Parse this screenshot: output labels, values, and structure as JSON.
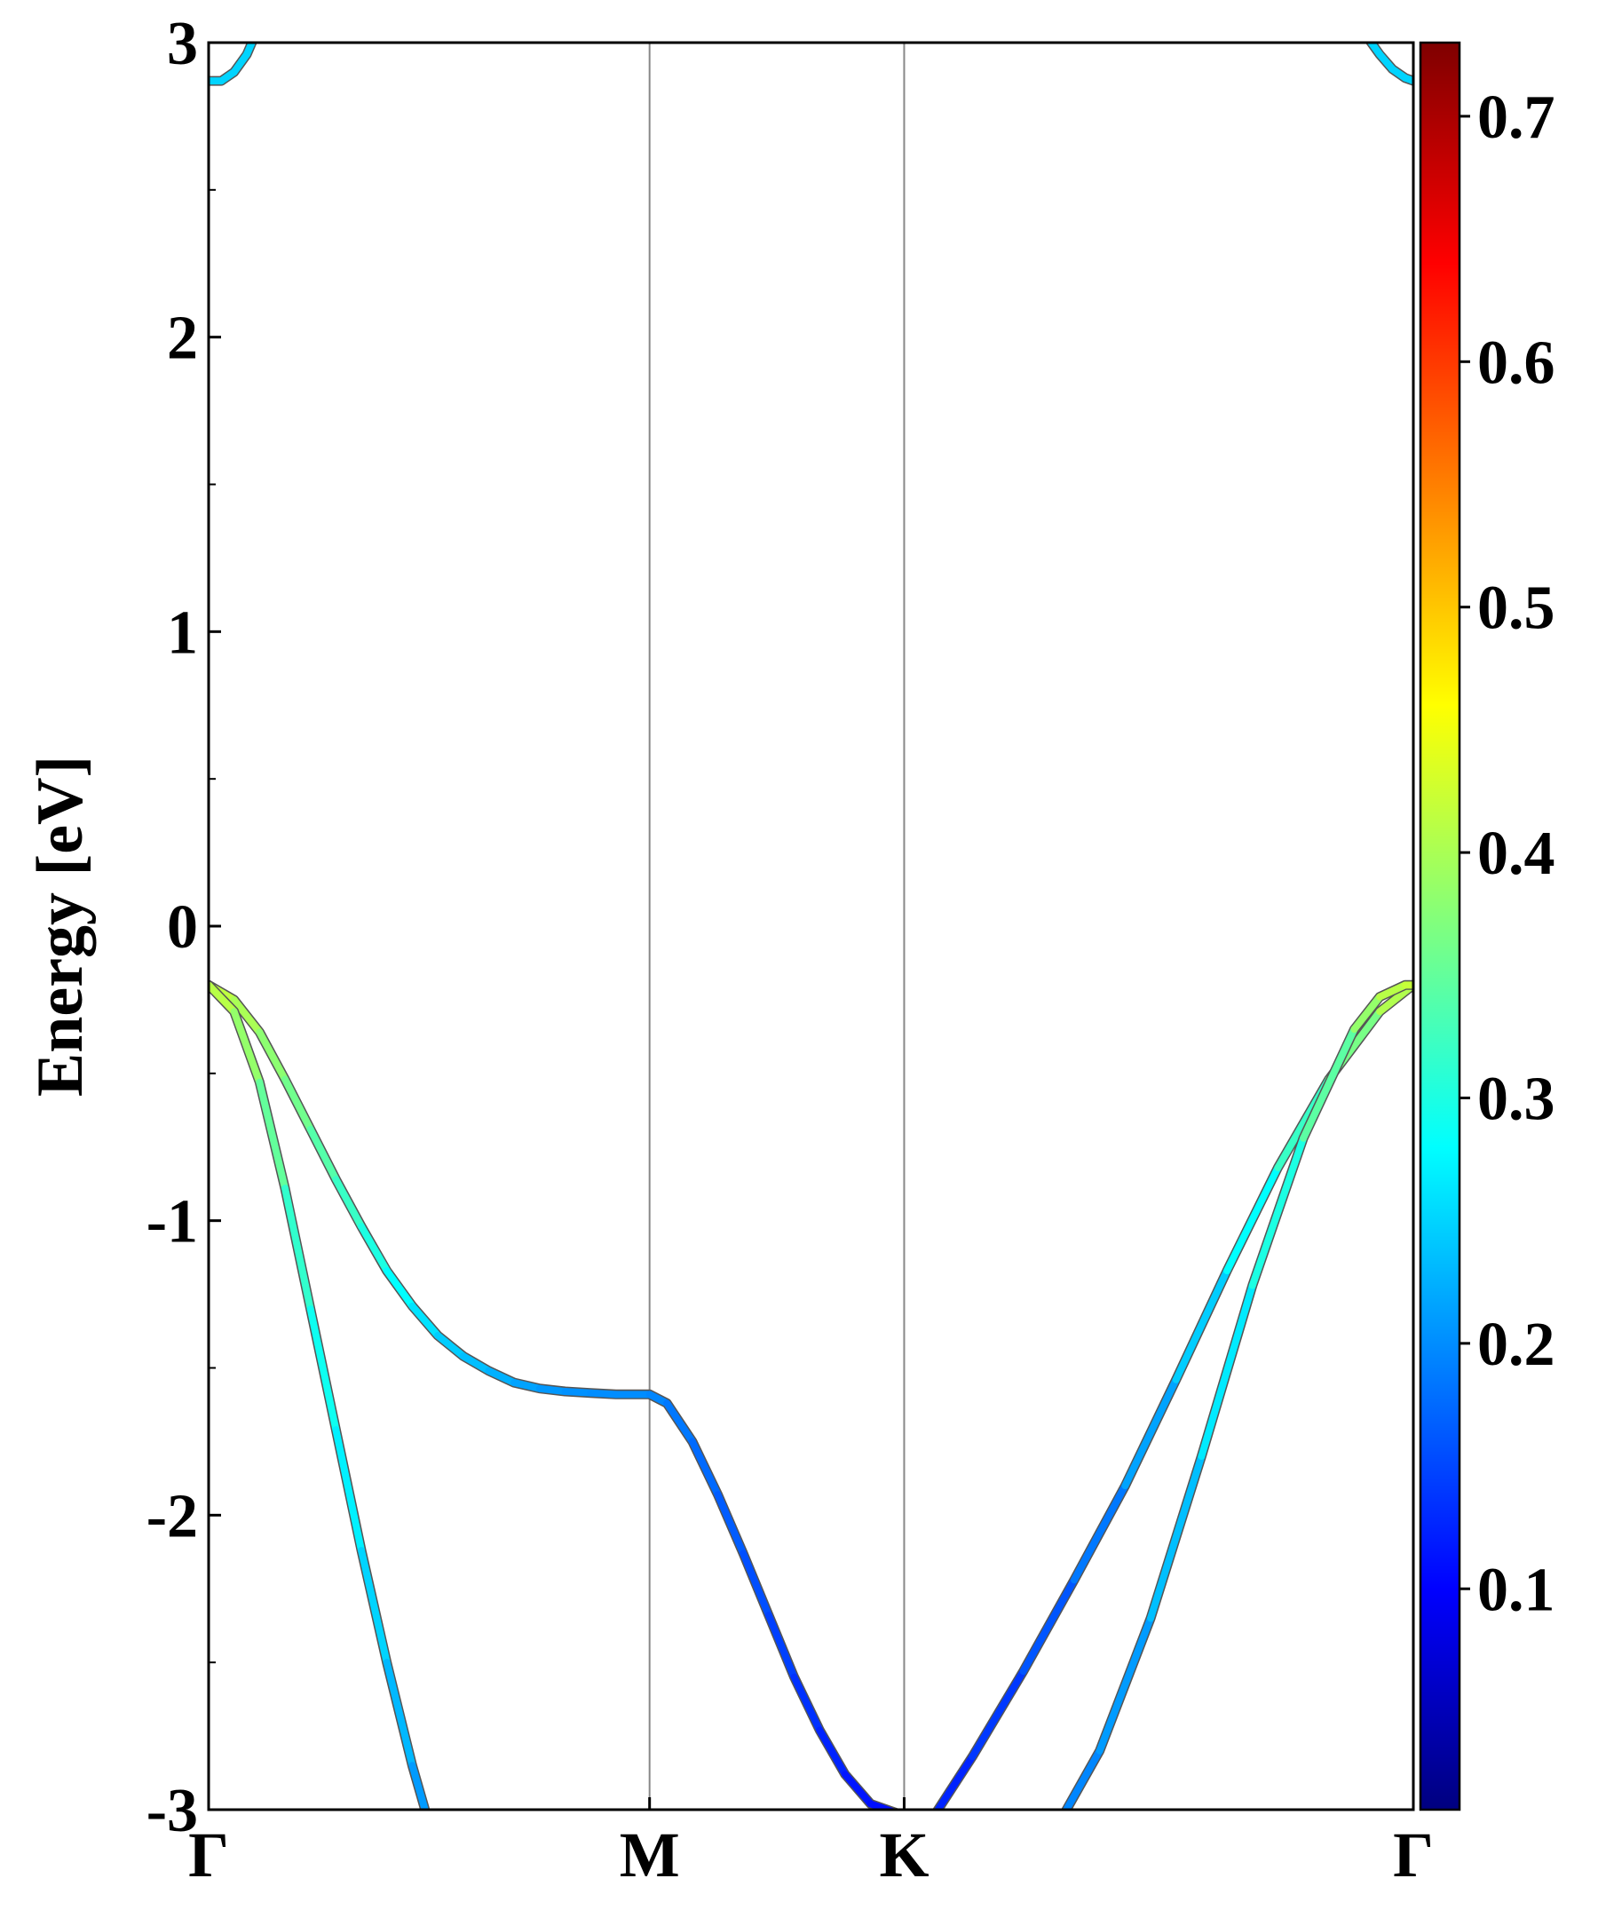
{
  "chart_data": {
    "type": "line",
    "ylabel": "Energy [eV]",
    "xlabel": "",
    "ylim": [
      -3,
      3
    ],
    "y_ticks": [
      "3",
      "2",
      "1",
      "0",
      "-1",
      "-2",
      "-3"
    ],
    "y_tick_values": [
      3,
      2,
      1,
      0,
      -1,
      -2,
      -3
    ],
    "k_labels": [
      "Γ",
      "M",
      "K",
      "Γ"
    ],
    "k_positions": [
      0,
      1.732,
      2.732,
      4.732
    ],
    "grid": "vertical lines at M and K",
    "colorbar": {
      "colormap": "jet",
      "range": [
        0.01,
        0.73
      ],
      "tick_labels": [
        "0.1",
        "0.2",
        "0.3",
        "0.4",
        "0.5",
        "0.6",
        "0.7"
      ],
      "tick_values": [
        0.1,
        0.2,
        0.3,
        0.4,
        0.5,
        0.6,
        0.7
      ],
      "colors": [
        "#00007f",
        "#0000ff",
        "#007fff",
        "#00ffff",
        "#7fff7f",
        "#ffff00",
        "#ff7f00",
        "#ff0000",
        "#7f0000"
      ]
    },
    "series": [
      {
        "x": [
          0,
          0.1,
          0.2,
          0.3,
          0.4,
          0.5,
          0.6,
          0.7,
          0.8,
          0.9,
          1.0,
          1.1,
          1.2,
          1.3,
          1.4,
          1.5,
          1.6,
          1.732,
          1.8,
          1.9,
          2.0,
          2.1,
          2.2,
          2.3,
          2.4,
          2.5,
          2.6,
          2.73
        ],
        "y": [
          -0.2,
          -0.25,
          -0.36,
          -0.52,
          -0.69,
          -0.86,
          -1.02,
          -1.17,
          -1.29,
          -1.39,
          -1.46,
          -1.51,
          -1.55,
          -1.57,
          -1.58,
          -1.585,
          -1.59,
          -1.59,
          -1.62,
          -1.75,
          -1.93,
          -2.13,
          -2.34,
          -2.55,
          -2.73,
          -2.88,
          -2.98,
          -3.02
        ],
        "w": [
          0.42,
          0.41,
          0.39,
          0.37,
          0.35,
          0.33,
          0.31,
          0.29,
          0.27,
          0.25,
          0.24,
          0.23,
          0.22,
          0.21,
          0.205,
          0.2,
          0.2,
          0.2,
          0.19,
          0.18,
          0.17,
          0.16,
          0.15,
          0.14,
          0.13,
          0.12,
          0.11,
          0.11
        ]
      },
      {
        "x": [
          0,
          0.1,
          0.2,
          0.3,
          0.4,
          0.5,
          0.6,
          0.7,
          0.8,
          0.9,
          0.95
        ],
        "y": [
          -0.2,
          -0.29,
          -0.53,
          -0.89,
          -1.3,
          -1.71,
          -2.12,
          -2.5,
          -2.85,
          -3.15,
          -3.3
        ],
        "w": [
          0.42,
          0.4,
          0.37,
          0.33,
          0.3,
          0.28,
          0.26,
          0.24,
          0.22,
          0.2,
          0.2
        ]
      },
      {
        "x": [
          2.85,
          3.0,
          3.2,
          3.4,
          3.6,
          3.8,
          4.0,
          4.2,
          4.4,
          4.6,
          4.732
        ],
        "y": [
          -3.02,
          -2.82,
          -2.53,
          -2.22,
          -1.9,
          -1.54,
          -1.17,
          -0.82,
          -0.52,
          -0.29,
          -0.2
        ],
        "w": [
          0.12,
          0.13,
          0.15,
          0.17,
          0.2,
          0.23,
          0.26,
          0.3,
          0.34,
          0.39,
          0.42
        ]
      },
      {
        "x": [
          3.35,
          3.5,
          3.7,
          3.9,
          4.1,
          4.3,
          4.5,
          4.6,
          4.7,
          4.732
        ],
        "y": [
          -3.03,
          -2.8,
          -2.35,
          -1.8,
          -1.22,
          -0.72,
          -0.35,
          -0.24,
          -0.2,
          -0.2
        ],
        "w": [
          0.19,
          0.2,
          0.22,
          0.25,
          0.28,
          0.32,
          0.37,
          0.4,
          0.42,
          0.42
        ]
      },
      {
        "x": [
          0,
          0.05,
          0.1,
          0.15,
          0.18
        ],
        "y": [
          2.87,
          2.87,
          2.9,
          2.96,
          3.02
        ],
        "w": [
          0.25,
          0.25,
          0.25,
          0.25,
          0.25
        ]
      },
      {
        "x": [
          4.55,
          4.6,
          4.65,
          4.7,
          4.732
        ],
        "y": [
          3.02,
          2.96,
          2.91,
          2.88,
          2.87
        ],
        "w": [
          0.25,
          0.25,
          0.25,
          0.25,
          0.25
        ]
      }
    ]
  }
}
